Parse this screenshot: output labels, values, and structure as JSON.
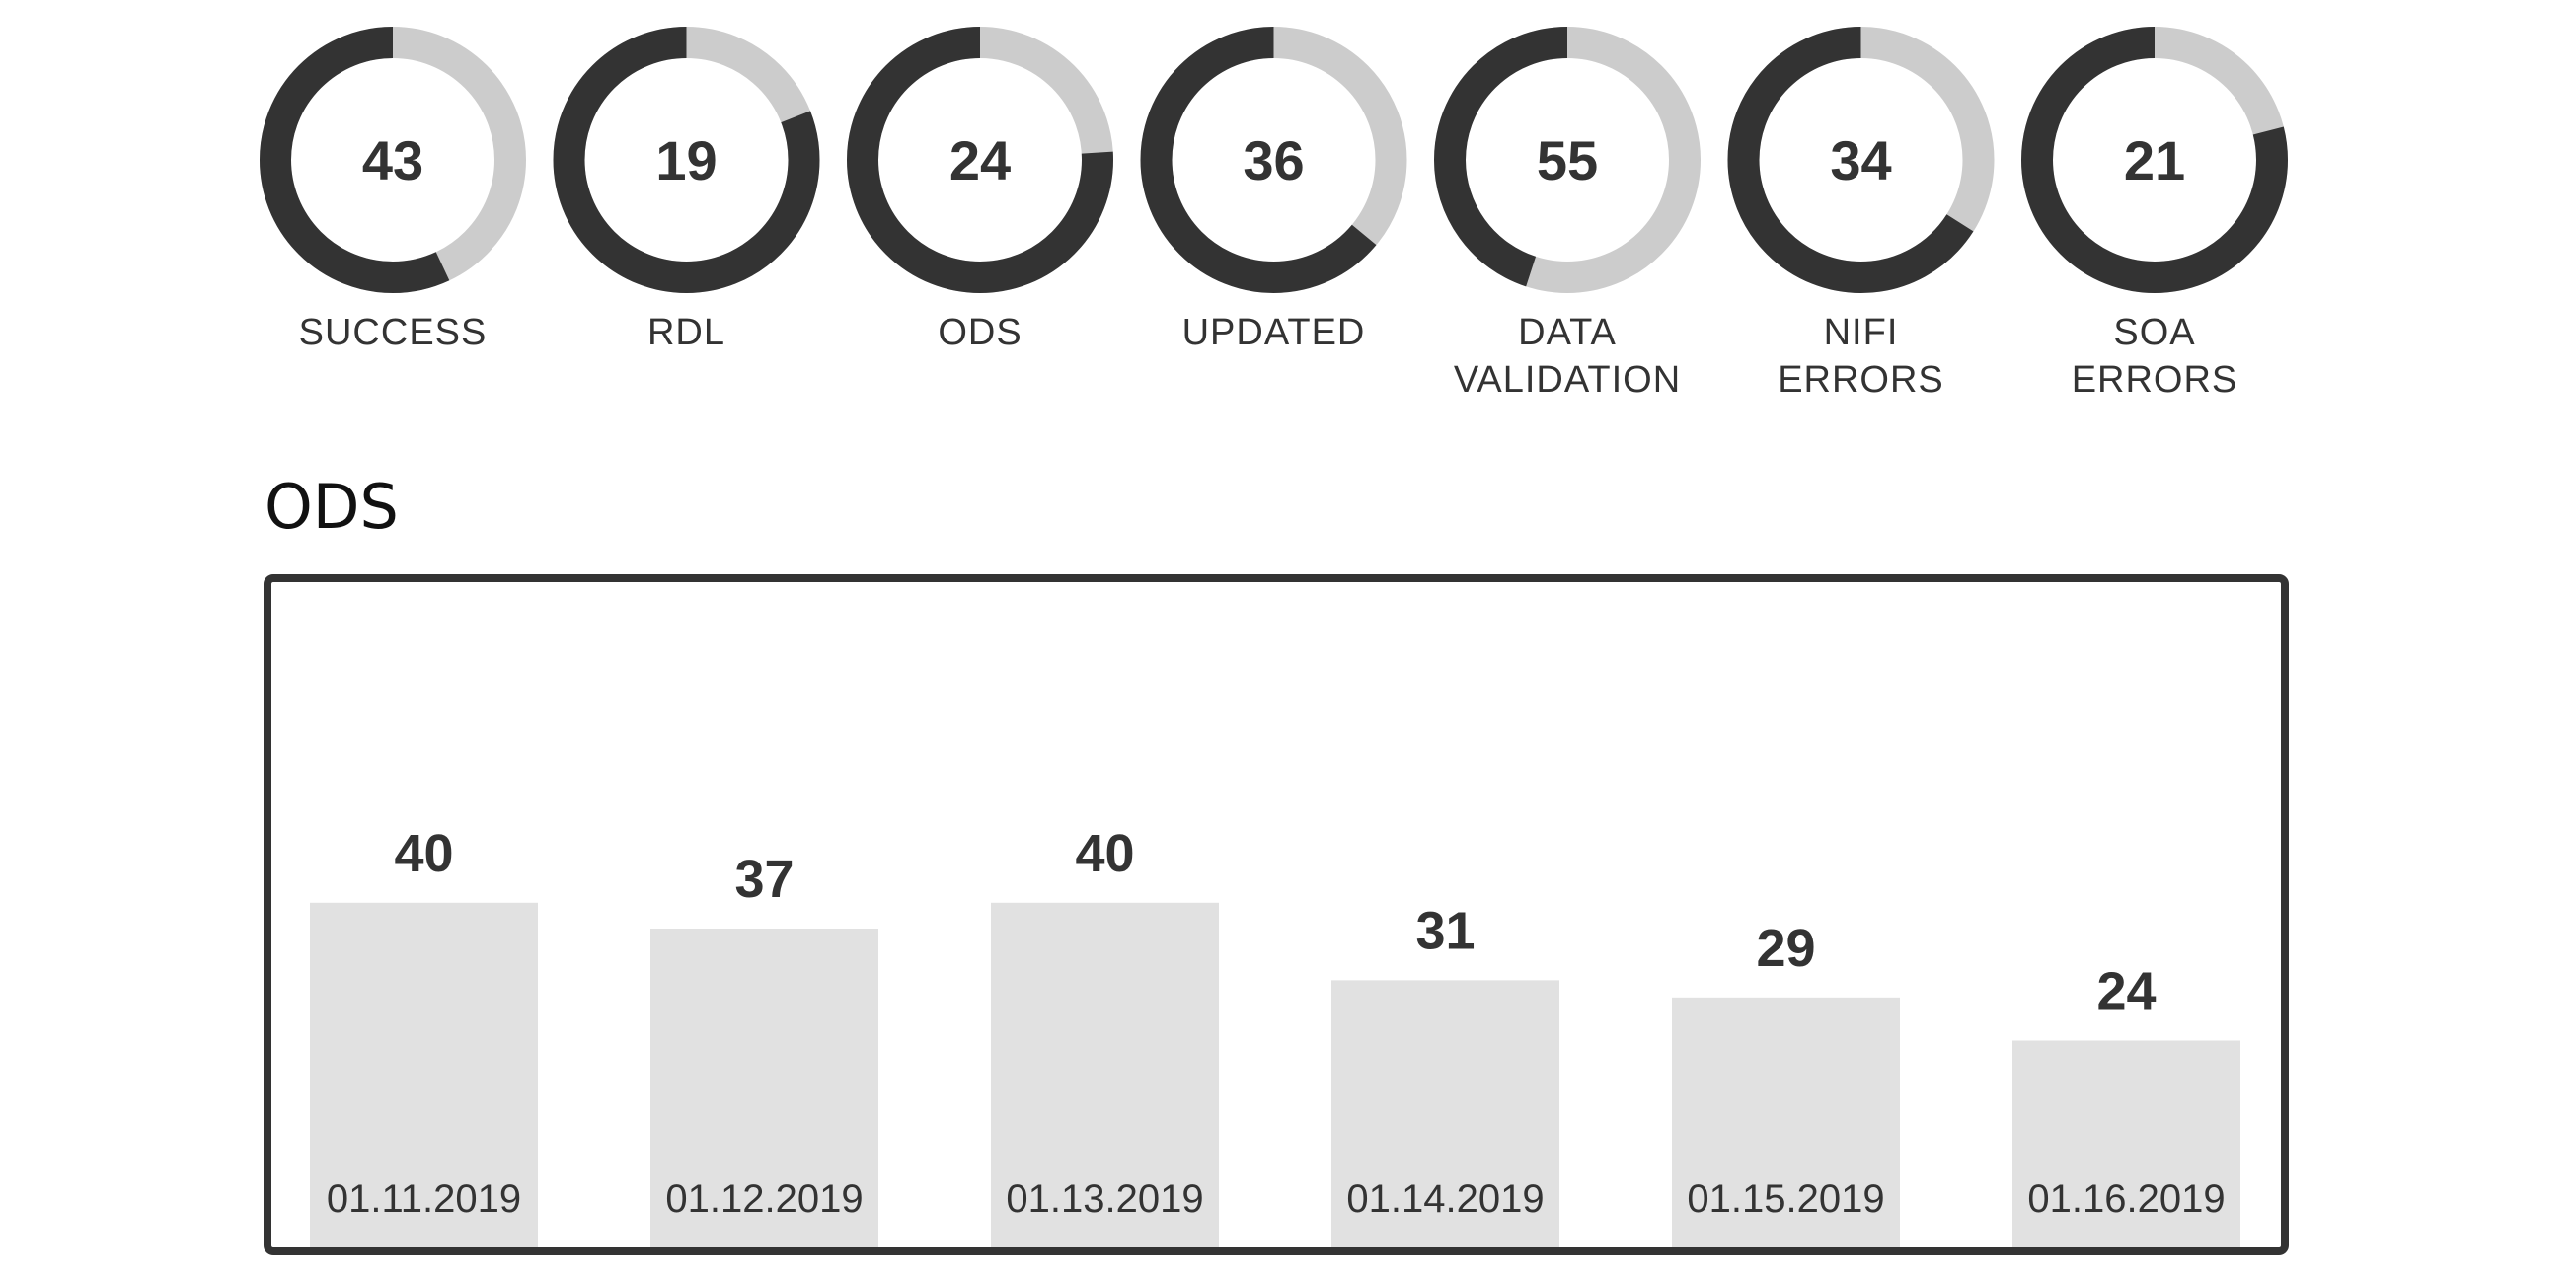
{
  "donuts": [
    {
      "value": 43,
      "label_lines": [
        "SUCCESS"
      ]
    },
    {
      "value": 19,
      "label_lines": [
        "RDL"
      ]
    },
    {
      "value": 24,
      "label_lines": [
        "ODS"
      ]
    },
    {
      "value": 36,
      "label_lines": [
        "UPDATED"
      ]
    },
    {
      "value": 55,
      "label_lines": [
        "DATA",
        "VALIDATION"
      ]
    },
    {
      "value": 34,
      "label_lines": [
        "NIFI",
        "ERRORS"
      ]
    },
    {
      "value": 21,
      "label_lines": [
        "SOA",
        "ERRORS"
      ]
    }
  ],
  "colors": {
    "ring_dark": "#333333",
    "ring_light": "#cccccc",
    "bar_fill": "#e1e1e1",
    "frame": "#333333",
    "text": "#333333"
  },
  "section_title": "ODS",
  "chart_data": {
    "type": "bar",
    "title": "ODS",
    "categories": [
      "01.11.2019",
      "01.12.2019",
      "01.13.2019",
      "01.14.2019",
      "01.15.2019",
      "01.16.2019"
    ],
    "values": [
      40,
      37,
      40,
      31,
      29,
      24
    ],
    "xlabel": "",
    "ylabel": "",
    "grid": false,
    "legend": "none"
  }
}
